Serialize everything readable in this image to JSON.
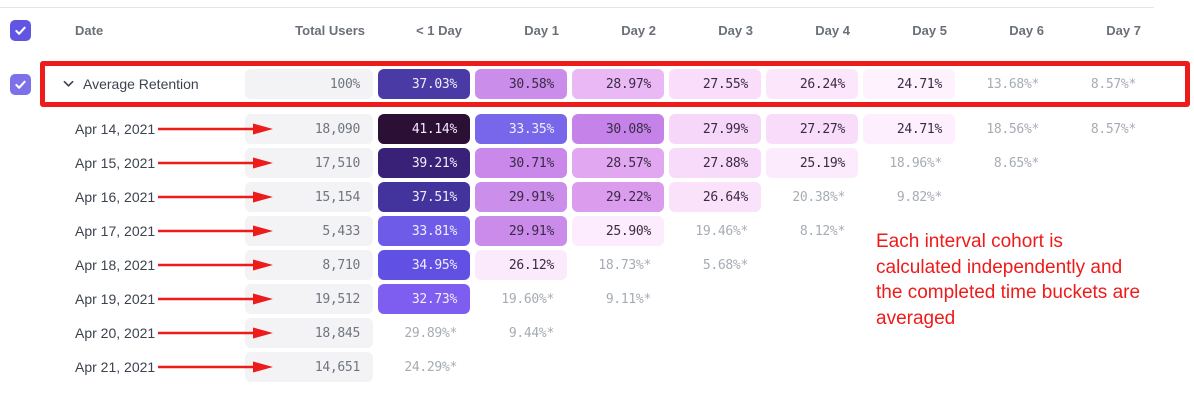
{
  "colors": {
    "accent": "#6156e2",
    "accent_light": "#7d71ea",
    "annotation_red": "#ee1b1b",
    "cell_total_bg": "#f3f3f5",
    "text_total": "#6f7680",
    "text_header": "#6a7078",
    "text_date": "#3d434e",
    "text_gray_star": "#a6acb4",
    "text_dark_on_light": "#3a2b44",
    "text_white_on_dark": "#f2edf9"
  },
  "table": {
    "select_all_checked": true,
    "columns": [
      "Date",
      "Total Users",
      "< 1 Day",
      "Day 1",
      "Day 2",
      "Day 3",
      "Day 4",
      "Day 5",
      "Day 6",
      "Day 7"
    ],
    "rows": [
      {
        "label": "Average Retention",
        "is_average": true,
        "checked": true,
        "arrow": false,
        "total": "100%",
        "cells": [
          {
            "text": "37.03%",
            "bg": "#4a3aa5",
            "fg": "#f2edf9"
          },
          {
            "text": "30.58%",
            "bg": "#ca8dea",
            "fg": "#3a2b44"
          },
          {
            "text": "28.97%",
            "bg": "#eab8f4",
            "fg": "#3a2b44"
          },
          {
            "text": "27.55%",
            "bg": "#f9ddfa",
            "fg": "#3a2b44"
          },
          {
            "text": "26.24%",
            "bg": "#fbe6fc",
            "fg": "#3a2b44"
          },
          {
            "text": "24.71%",
            "bg": "#fdf2fe",
            "fg": "#3a2b44"
          },
          {
            "text": "13.68%*",
            "bg": null,
            "fg": "#a6acb4"
          },
          {
            "text": "8.57%*",
            "bg": null,
            "fg": "#a6acb4"
          }
        ]
      },
      {
        "label": "Apr 14, 2021",
        "is_average": false,
        "checked": false,
        "arrow": true,
        "total": "18,090",
        "cells": [
          {
            "text": "41.14%",
            "bg": "#2c0f35",
            "fg": "#f2edf9"
          },
          {
            "text": "33.35%",
            "bg": "#7867ea",
            "fg": "#f2edf9"
          },
          {
            "text": "30.08%",
            "bg": "#c583e9",
            "fg": "#3a2b44"
          },
          {
            "text": "27.99%",
            "bg": "#f7d7f9",
            "fg": "#3a2b44"
          },
          {
            "text": "27.27%",
            "bg": "#f8dcfa",
            "fg": "#3a2b44"
          },
          {
            "text": "24.71%",
            "bg": "#fdeffd",
            "fg": "#3a2b44"
          },
          {
            "text": "18.56%*",
            "bg": null,
            "fg": "#a6acb4"
          },
          {
            "text": "8.57%*",
            "bg": null,
            "fg": "#a6acb4"
          }
        ]
      },
      {
        "label": "Apr 15, 2021",
        "is_average": false,
        "checked": false,
        "arrow": true,
        "total": "17,510",
        "cells": [
          {
            "text": "39.21%",
            "bg": "#3a2178",
            "fg": "#f2edf9"
          },
          {
            "text": "30.71%",
            "bg": "#c988ea",
            "fg": "#3a2b44"
          },
          {
            "text": "28.57%",
            "bg": "#e2a7f1",
            "fg": "#3a2b44"
          },
          {
            "text": "27.88%",
            "bg": "#f8dbfa",
            "fg": "#3a2b44"
          },
          {
            "text": "25.19%",
            "bg": "#fcebfd",
            "fg": "#3a2b44"
          },
          {
            "text": "18.96%*",
            "bg": null,
            "fg": "#a6acb4"
          },
          {
            "text": "8.65%*",
            "bg": null,
            "fg": "#a6acb4"
          }
        ]
      },
      {
        "label": "Apr 16, 2021",
        "is_average": false,
        "checked": false,
        "arrow": true,
        "total": "15,154",
        "cells": [
          {
            "text": "37.51%",
            "bg": "#43339c",
            "fg": "#f2edf9"
          },
          {
            "text": "29.91%",
            "bg": "#cb8eea",
            "fg": "#3a2b44"
          },
          {
            "text": "29.22%",
            "bg": "#db9cee",
            "fg": "#3a2b44"
          },
          {
            "text": "26.64%",
            "bg": "#fae2fb",
            "fg": "#3a2b44"
          },
          {
            "text": "20.38%*",
            "bg": null,
            "fg": "#a6acb4"
          },
          {
            "text": "9.82%*",
            "bg": null,
            "fg": "#a6acb4"
          }
        ]
      },
      {
        "label": "Apr 17, 2021",
        "is_average": false,
        "checked": false,
        "arrow": true,
        "total": "5,433",
        "cells": [
          {
            "text": "33.81%",
            "bg": "#6e5ce8",
            "fg": "#f2edf9"
          },
          {
            "text": "29.91%",
            "bg": "#ca8bea",
            "fg": "#3a2b44"
          },
          {
            "text": "25.90%",
            "bg": "#fcecfd",
            "fg": "#3a2b44"
          },
          {
            "text": "19.46%*",
            "bg": null,
            "fg": "#a6acb4"
          },
          {
            "text": "8.12%*",
            "bg": null,
            "fg": "#a6acb4"
          }
        ]
      },
      {
        "label": "Apr 18, 2021",
        "is_average": false,
        "checked": false,
        "arrow": true,
        "total": "8,710",
        "cells": [
          {
            "text": "34.95%",
            "bg": "#6150e4",
            "fg": "#f2edf9"
          },
          {
            "text": "26.12%",
            "bg": "#fbe9fc",
            "fg": "#3a2b44"
          },
          {
            "text": "18.73%*",
            "bg": null,
            "fg": "#a6acb4"
          },
          {
            "text": "5.68%*",
            "bg": null,
            "fg": "#a6acb4"
          }
        ]
      },
      {
        "label": "Apr 19, 2021",
        "is_average": false,
        "checked": false,
        "arrow": true,
        "total": "19,512",
        "cells": [
          {
            "text": "32.73%",
            "bg": "#7d5ef0",
            "fg": "#f2edf9"
          },
          {
            "text": "19.60%*",
            "bg": null,
            "fg": "#a6acb4"
          },
          {
            "text": "9.11%*",
            "bg": null,
            "fg": "#a6acb4"
          }
        ]
      },
      {
        "label": "Apr 20, 2021",
        "is_average": false,
        "checked": false,
        "arrow": true,
        "total": "18,845",
        "cells": [
          {
            "text": "29.89%*",
            "bg": null,
            "fg": "#a6acb4"
          },
          {
            "text": "9.44%*",
            "bg": null,
            "fg": "#a6acb4"
          }
        ]
      },
      {
        "label": "Apr 21, 2021",
        "is_average": false,
        "checked": false,
        "arrow": true,
        "total": "14,651",
        "cells": [
          {
            "text": "24.29%*",
            "bg": null,
            "fg": "#a6acb4"
          }
        ]
      }
    ]
  },
  "annotations": {
    "note": "Each interval cohort is\ncalculated independently and\nthe completed time buckets are\naveraged"
  }
}
